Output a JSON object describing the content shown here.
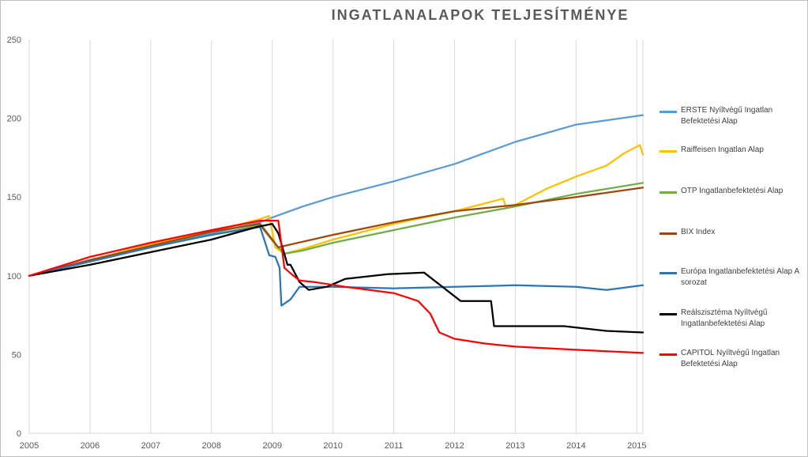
{
  "chart_data": {
    "type": "line",
    "title": "INGATLANALAPOK TELJESÍTMÉNYE",
    "xlabel": "",
    "ylabel": "",
    "xlim": [
      2005,
      2015.1
    ],
    "ylim": [
      0,
      250
    ],
    "x_ticks": [
      "2005",
      "2006",
      "2007",
      "2008",
      "2009",
      "2010",
      "2011",
      "2012",
      "2013",
      "2014",
      "2015"
    ],
    "y_ticks": [
      "0",
      "50",
      "100",
      "150",
      "200",
      "250"
    ],
    "grid": "vertical",
    "legend_position": "right",
    "series": [
      {
        "name": "ERSTE Nyíltvégű Ingatlan Befektetési Alap",
        "color": "#5b9bd5",
        "x": [
          2005,
          2006,
          2007,
          2008,
          2008.8,
          2009,
          2009.5,
          2010,
          2011,
          2012,
          2013,
          2014,
          2015.1
        ],
        "y": [
          100,
          110,
          118,
          127,
          134,
          137,
          144,
          150,
          160,
          171,
          185,
          196,
          202
        ]
      },
      {
        "name": "Raiffeisen Ingatlan Alap",
        "color": "#ffc000",
        "x": [
          2005,
          2006,
          2007,
          2008,
          2008.8,
          2008.95,
          2009.05,
          2009.2,
          2009.5,
          2010,
          2011,
          2012,
          2012.8,
          2012.85,
          2013,
          2013.5,
          2014,
          2014.5,
          2014.8,
          2015.05,
          2015.1
        ],
        "y": [
          100,
          110,
          120,
          128,
          136,
          138,
          118,
          114,
          117,
          123,
          133,
          141,
          149,
          143,
          145,
          155,
          163,
          170,
          178,
          183,
          177
        ]
      },
      {
        "name": "OTP Ingatlanbefektetési Alap",
        "color": "#70ad47",
        "x": [
          2005,
          2006,
          2007,
          2008,
          2008.8,
          2009.05,
          2009.2,
          2009.5,
          2010,
          2011,
          2012,
          2013,
          2014,
          2015.1
        ],
        "y": [
          100,
          110,
          119,
          126,
          132,
          120,
          114,
          116,
          121,
          129,
          137,
          144,
          152,
          159
        ]
      },
      {
        "name": "BIX Index",
        "color": "#9e480e",
        "x": [
          2005,
          2006,
          2007,
          2008,
          2008.8,
          2009.1,
          2009.2,
          2010,
          2011,
          2012,
          2013,
          2014,
          2015.1
        ],
        "y": [
          100,
          110,
          119,
          128,
          133,
          118,
          119,
          126,
          134,
          141,
          145,
          150,
          156
        ]
      },
      {
        "name": "Európa Ingatlanbefektetési Alap A sorozat",
        "color": "#2e75b6",
        "x": [
          2005,
          2006,
          2007,
          2008,
          2008.8,
          2008.95,
          2009.05,
          2009.12,
          2009.15,
          2009.3,
          2009.45,
          2010,
          2011,
          2012,
          2013,
          2014,
          2014.5,
          2015.1
        ],
        "y": [
          100,
          109,
          118,
          126,
          131,
          113,
          112,
          105,
          81,
          85,
          93,
          93,
          92,
          93,
          94,
          93,
          91,
          94
        ]
      },
      {
        "name": "Reálszisztéma Nyíltvégű Ingatlanbefektetési Alap",
        "color": "#000000",
        "x": [
          2005,
          2006,
          2007,
          2008,
          2008.75,
          2009.0,
          2009.1,
          2009.25,
          2009.3,
          2009.45,
          2009.6,
          2009.9,
          2010.2,
          2010.9,
          2011.5,
          2012.1,
          2012.6,
          2012.65,
          2013.8,
          2014.5,
          2015.1
        ],
        "y": [
          100,
          107,
          115,
          123,
          131,
          133,
          127,
          107,
          107,
          96,
          91,
          93,
          98,
          101,
          102,
          84,
          84,
          68,
          68,
          65,
          64
        ]
      },
      {
        "name": "CAPITOL Nyíltvégű Ingatlan Befektetési Alap",
        "color": "#ff0000",
        "x": [
          2005,
          2006,
          2007,
          2008,
          2008.8,
          2009.1,
          2009.2,
          2009.35,
          2009.45,
          2009.7,
          2010.2,
          2011.0,
          2011.4,
          2011.6,
          2011.75,
          2012.0,
          2012.5,
          2013,
          2014,
          2015.1
        ],
        "y": [
          100,
          112,
          121,
          129,
          135,
          135,
          105,
          100,
          97,
          96,
          93,
          89,
          84,
          76,
          64,
          60,
          57,
          55,
          53,
          51
        ]
      }
    ]
  }
}
